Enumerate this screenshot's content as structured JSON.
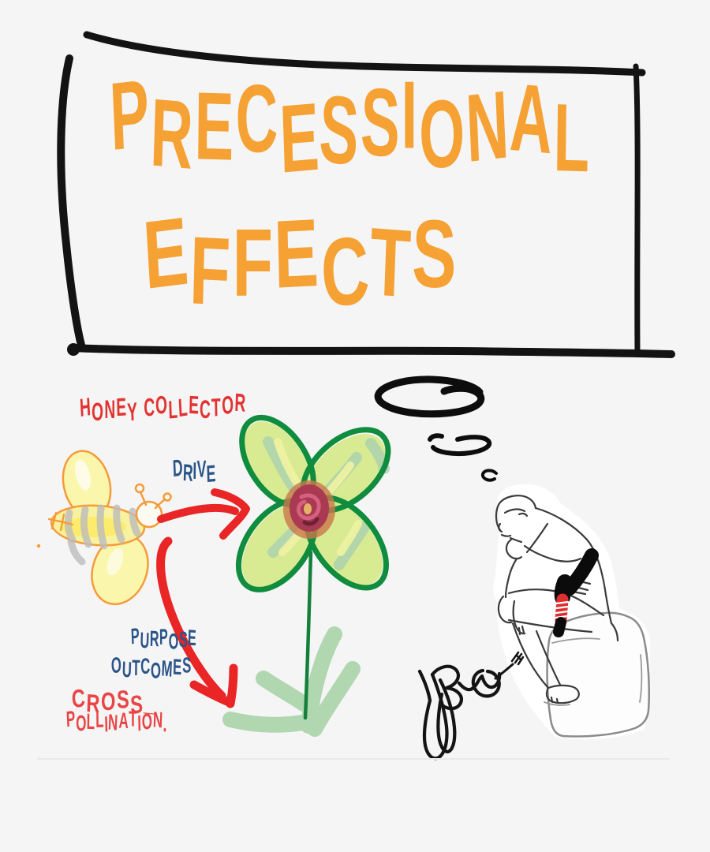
{
  "canvas": {
    "background": "#f5f5f6",
    "divider_color": "#e9e9eb"
  },
  "title": {
    "line1": "PRECESSIONAL",
    "line2": "EFFECTS",
    "color": "#F5A133",
    "frame_color": "#131313"
  },
  "labels": {
    "honey_collector": "HONEY COLLECTOR",
    "drive": "DRIVE",
    "purpose": "PURPOSE",
    "outcomes": "OUTCOMES",
    "cross": "CROSS_",
    "pollination": "POLLINATION.",
    "red_label_color": "#E23330",
    "light_red_color": "#EA4545",
    "blue_label_color": "#2B5488"
  },
  "scene": {
    "bee_sketch": {
      "outline": "#F59B38",
      "wing_fill": "#FAF6AC",
      "body_fill": "#F8F2A0",
      "stripe_color": "#BDBDBD"
    },
    "flower_sketch": {
      "petal_outline": "#0F8C3E",
      "petal_fill": "#D9EB92",
      "petal_overlay": "#A6D0B2",
      "petal_highlight": "#EFF3A2",
      "center_ring": "#C8784A",
      "center_blob": "#A93A52",
      "stem": "#15803C",
      "grass": "#A9D4A9"
    },
    "arrows": {
      "color": "#E92525",
      "count": 2
    },
    "thought_bubbles": {
      "color": "#0D0D0D",
      "count": 3
    },
    "thinker_statue_sketch": {
      "outline": "#3B3B3B",
      "rock_outline": "#8B8B8B",
      "tie_black": "#0B0B0B",
      "tie_red": "#DD2F2F"
    },
    "signature_scribble": {
      "color": "#141414"
    }
  }
}
